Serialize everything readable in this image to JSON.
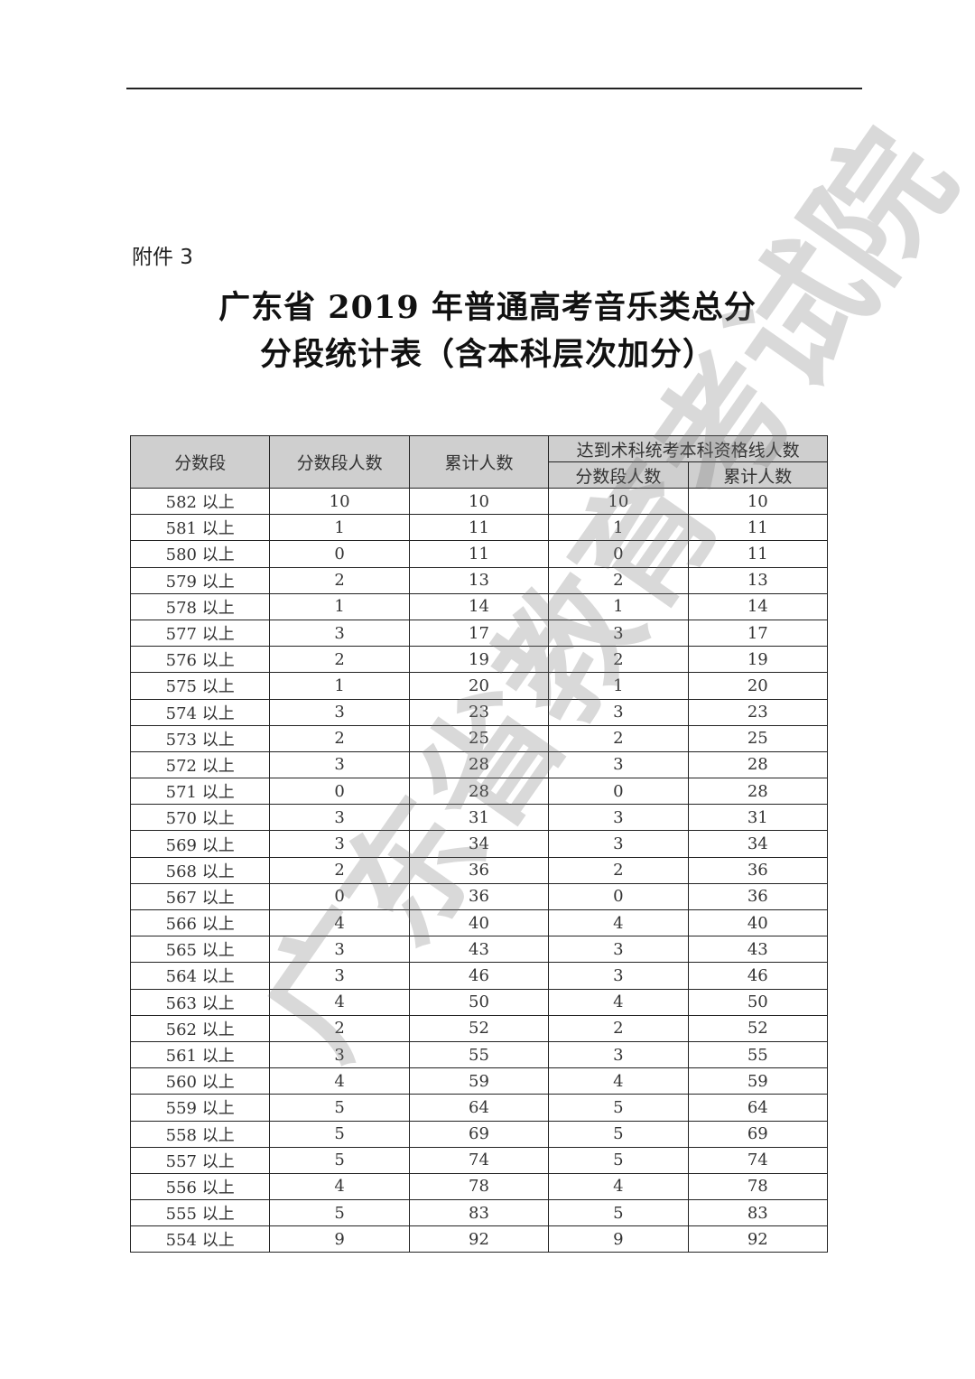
{
  "attachment_label": "附件 3",
  "title_line1": "广东省 2019 年普通高考音乐类总分",
  "title_line2": "分段统计表（含本科层次加分）",
  "watermark": "广东省教育考试院",
  "table": {
    "headers": {
      "score_band": "分数段",
      "band_count": "分数段人数",
      "cumulative": "累计人数",
      "qualified_group": "达到术科统考本科资格线人数",
      "qualified_band_count": "分数段人数",
      "qualified_cumulative": "累计人数"
    },
    "rows": [
      [
        "582 以上",
        "10",
        "10",
        "10",
        "10"
      ],
      [
        "581 以上",
        "1",
        "11",
        "1",
        "11"
      ],
      [
        "580 以上",
        "0",
        "11",
        "0",
        "11"
      ],
      [
        "579 以上",
        "2",
        "13",
        "2",
        "13"
      ],
      [
        "578 以上",
        "1",
        "14",
        "1",
        "14"
      ],
      [
        "577 以上",
        "3",
        "17",
        "3",
        "17"
      ],
      [
        "576 以上",
        "2",
        "19",
        "2",
        "19"
      ],
      [
        "575 以上",
        "1",
        "20",
        "1",
        "20"
      ],
      [
        "574 以上",
        "3",
        "23",
        "3",
        "23"
      ],
      [
        "573 以上",
        "2",
        "25",
        "2",
        "25"
      ],
      [
        "572 以上",
        "3",
        "28",
        "3",
        "28"
      ],
      [
        "571 以上",
        "0",
        "28",
        "0",
        "28"
      ],
      [
        "570 以上",
        "3",
        "31",
        "3",
        "31"
      ],
      [
        "569 以上",
        "3",
        "34",
        "3",
        "34"
      ],
      [
        "568 以上",
        "2",
        "36",
        "2",
        "36"
      ],
      [
        "567 以上",
        "0",
        "36",
        "0",
        "36"
      ],
      [
        "566 以上",
        "4",
        "40",
        "4",
        "40"
      ],
      [
        "565 以上",
        "3",
        "43",
        "3",
        "43"
      ],
      [
        "564 以上",
        "3",
        "46",
        "3",
        "46"
      ],
      [
        "563 以上",
        "4",
        "50",
        "4",
        "50"
      ],
      [
        "562 以上",
        "2",
        "52",
        "2",
        "52"
      ],
      [
        "561 以上",
        "3",
        "55",
        "3",
        "55"
      ],
      [
        "560 以上",
        "4",
        "59",
        "4",
        "59"
      ],
      [
        "559 以上",
        "5",
        "64",
        "5",
        "64"
      ],
      [
        "558 以上",
        "5",
        "69",
        "5",
        "69"
      ],
      [
        "557 以上",
        "5",
        "74",
        "5",
        "74"
      ],
      [
        "556 以上",
        "4",
        "78",
        "4",
        "78"
      ],
      [
        "555 以上",
        "5",
        "83",
        "5",
        "83"
      ],
      [
        "554 以上",
        "9",
        "92",
        "9",
        "92"
      ]
    ]
  }
}
